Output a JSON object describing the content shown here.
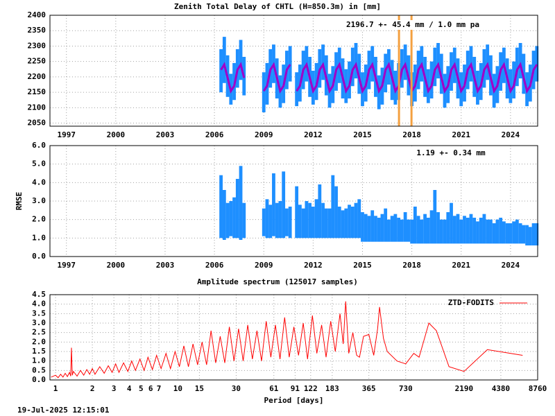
{
  "chart_data": [
    {
      "type": "range",
      "title": "Zenith Total Delay of CHTL (H=850.3m) in [mm]",
      "annotation": "2196.7 +-  45.4 mm /  1.0 mm pa",
      "xlim": [
        1996,
        2025.65
      ],
      "xticks": [
        1997,
        2000,
        2003,
        2006,
        2009,
        2012,
        2015,
        2018,
        2021,
        2024
      ],
      "ylim": [
        2040,
        2400
      ],
      "yticks": [
        2050,
        2100,
        2150,
        2200,
        2250,
        2300,
        2350,
        2400
      ],
      "grid": true,
      "vlines": [
        2017.22,
        2017.98
      ],
      "vline_color": "#f4a040",
      "x": [
        2006.4,
        2006.6,
        2006.8,
        2007,
        2007.2,
        2007.4,
        2007.6,
        2007.8,
        2008.4,
        2009,
        2009.2,
        2009.4,
        2009.6,
        2009.8,
        2010,
        2010.2,
        2010.4,
        2010.6,
        2010.8,
        2011,
        2011.2,
        2011.4,
        2011.6,
        2011.8,
        2012,
        2012.2,
        2012.4,
        2012.6,
        2012.8,
        2013,
        2013.2,
        2013.4,
        2013.6,
        2013.8,
        2014,
        2014.2,
        2014.4,
        2014.6,
        2014.8,
        2015,
        2015.2,
        2015.4,
        2015.6,
        2015.8,
        2016,
        2016.2,
        2016.4,
        2016.6,
        2016.8,
        2017,
        2017.2,
        2017.4,
        2017.6,
        2017.8,
        2018,
        2018.2,
        2018.4,
        2018.6,
        2018.8,
        2019,
        2019.2,
        2019.4,
        2019.6,
        2019.8,
        2020,
        2020.2,
        2020.4,
        2020.6,
        2020.8,
        2021,
        2021.2,
        2021.4,
        2021.6,
        2021.8,
        2022,
        2022.2,
        2022.4,
        2022.6,
        2022.8,
        2023,
        2023.2,
        2023.4,
        2023.6,
        2023.8,
        2024,
        2024.2,
        2024.4,
        2024.6,
        2024.8,
        2025,
        2025.2,
        2025.4,
        2025.6
      ],
      "series": [
        {
          "color": "#1e8fff",
          "low": [
            2150,
            2180,
            2135,
            2110,
            2125,
            2165,
            2190,
            2140,
            null,
            2085,
            2110,
            2165,
            2180,
            2130,
            2100,
            2115,
            2160,
            2185,
            null,
            2105,
            2120,
            2160,
            2185,
            2135,
            2110,
            2125,
            2165,
            2190,
            2140,
            2100,
            2115,
            2155,
            2180,
            2130,
            2115,
            2130,
            2170,
            2195,
            2145,
            2105,
            2120,
            2160,
            2185,
            2135,
            2095,
            2110,
            2150,
            2175,
            2125,
            2110,
            2125,
            2165,
            2190,
            2140,
            2105,
            2120,
            2160,
            2185,
            2135,
            2115,
            2130,
            2170,
            2195,
            2145,
            2100,
            2115,
            2155,
            2180,
            2130,
            2105,
            2120,
            2160,
            2185,
            2135,
            2110,
            2125,
            2165,
            2190,
            2140,
            2100,
            2115,
            2155,
            2180,
            2130,
            2115,
            2130,
            2170,
            2195,
            2145,
            2105,
            2120,
            2160,
            2185
          ],
          "high": [
            2290,
            2330,
            2270,
            2210,
            2245,
            2290,
            2320,
            2265,
            null,
            2215,
            2245,
            2290,
            2305,
            2260,
            2205,
            2240,
            2285,
            2300,
            null,
            2215,
            2240,
            2285,
            2300,
            2265,
            2220,
            2245,
            2290,
            2305,
            2270,
            2210,
            2235,
            2280,
            2295,
            2260,
            2225,
            2250,
            2295,
            2310,
            2275,
            2215,
            2240,
            2285,
            2300,
            2265,
            2205,
            2230,
            2275,
            2290,
            2255,
            2220,
            2245,
            2290,
            2305,
            2270,
            2215,
            2240,
            2285,
            2300,
            2265,
            2225,
            2250,
            2295,
            2310,
            2275,
            2210,
            2235,
            2280,
            2295,
            2260,
            2215,
            2240,
            2285,
            2300,
            2265,
            2220,
            2245,
            2290,
            2305,
            2270,
            2210,
            2235,
            2280,
            2295,
            2260,
            2225,
            2250,
            2295,
            2310,
            2275,
            2215,
            2240,
            2285,
            2300
          ]
        },
        {
          "color": "#a000c8",
          "values": [
            2223,
            2240,
            2197,
            2154,
            2171,
            2223,
            2240,
            2197,
            null,
            2154,
            2171,
            2223,
            2240,
            2197,
            2154,
            2171,
            2223,
            2240,
            null,
            2154,
            2171,
            2223,
            2240,
            2197,
            2154,
            2171,
            2223,
            2240,
            2197,
            2154,
            2171,
            2223,
            2240,
            2197,
            2154,
            2171,
            2223,
            2240,
            2197,
            2154,
            2171,
            2223,
            2240,
            2197,
            2154,
            2171,
            2223,
            2240,
            2197,
            2154,
            2171,
            2223,
            2240,
            2197,
            2154,
            2171,
            2223,
            2240,
            2197,
            2154,
            2171,
            2223,
            2240,
            2197,
            2154,
            2171,
            2223,
            2240,
            2197,
            2154,
            2171,
            2223,
            2240,
            2197,
            2154,
            2171,
            2223,
            2240,
            2197,
            2154,
            2171,
            2223,
            2240,
            2197,
            2154,
            2171,
            2223,
            2240,
            2197,
            2154,
            2171,
            2223,
            2240
          ]
        }
      ]
    },
    {
      "type": "range",
      "ylabel": "RMSE",
      "annotation": "1.19 +-  0.34 mm",
      "xlim": [
        1996,
        2025.65
      ],
      "xticks": [
        1997,
        2000,
        2003,
        2006,
        2009,
        2012,
        2015,
        2018,
        2021,
        2024
      ],
      "ylim": [
        0,
        6
      ],
      "yticks": [
        {
          "value": 0,
          "label": "0.0"
        },
        {
          "value": 1,
          "label": "1.0"
        },
        {
          "value": 2,
          "label": "2.0"
        },
        {
          "value": 3,
          "label": "3.0"
        },
        {
          "value": 4,
          "label": "4.0"
        },
        {
          "value": 5,
          "label": "5.0"
        },
        {
          "value": 6,
          "label": "6.0"
        }
      ],
      "grid": true,
      "x": [
        2006.4,
        2006.6,
        2006.8,
        2007,
        2007.2,
        2007.4,
        2007.6,
        2007.8,
        2008.4,
        2009,
        2009.2,
        2009.4,
        2009.6,
        2009.8,
        2010,
        2010.2,
        2010.4,
        2010.6,
        2010.8,
        2011,
        2011.2,
        2011.4,
        2011.6,
        2011.8,
        2012,
        2012.2,
        2012.4,
        2012.6,
        2012.8,
        2013,
        2013.2,
        2013.4,
        2013.6,
        2013.8,
        2014,
        2014.2,
        2014.4,
        2014.6,
        2014.8,
        2015,
        2015.2,
        2015.4,
        2015.6,
        2015.8,
        2016,
        2016.2,
        2016.4,
        2016.6,
        2016.8,
        2017,
        2017.2,
        2017.4,
        2017.6,
        2017.8,
        2018,
        2018.2,
        2018.4,
        2018.6,
        2018.8,
        2019,
        2019.2,
        2019.4,
        2019.6,
        2019.8,
        2020,
        2020.2,
        2020.4,
        2020.6,
        2020.8,
        2021,
        2021.2,
        2021.4,
        2021.6,
        2021.8,
        2022,
        2022.2,
        2022.4,
        2022.6,
        2022.8,
        2023,
        2023.2,
        2023.4,
        2023.6,
        2023.8,
        2024,
        2024.2,
        2024.4,
        2024.6,
        2024.8,
        2025,
        2025.2,
        2025.4,
        2025.6
      ],
      "series": [
        {
          "color": "#1e8fff",
          "low": [
            1.0,
            0.9,
            1.0,
            1.1,
            1.0,
            1.0,
            0.9,
            1.0,
            null,
            1.1,
            1.0,
            1.0,
            1.1,
            1.0,
            1.0,
            1.0,
            1.1,
            1.0,
            null,
            1.0,
            1.0,
            1.0,
            1.0,
            1.0,
            1.0,
            1.0,
            1.0,
            1.0,
            1.0,
            1.0,
            1.0,
            1.0,
            1.0,
            1.0,
            1.0,
            1.0,
            1.0,
            1.0,
            1.0,
            0.8,
            0.8,
            0.8,
            0.8,
            0.8,
            0.8,
            0.8,
            0.8,
            0.8,
            0.8,
            0.8,
            0.8,
            0.8,
            0.8,
            0.8,
            0.7,
            0.7,
            0.7,
            0.7,
            0.7,
            0.7,
            0.7,
            0.7,
            0.7,
            0.7,
            0.7,
            0.7,
            0.7,
            0.7,
            0.7,
            0.7,
            0.7,
            0.7,
            0.7,
            0.7,
            0.7,
            0.7,
            0.7,
            0.7,
            0.7,
            0.7,
            0.7,
            0.7,
            0.7,
            0.7,
            0.7,
            0.7,
            0.7,
            0.7,
            0.7,
            0.6,
            0.6,
            0.6,
            0.6
          ],
          "high": [
            4.4,
            3.6,
            2.9,
            3.0,
            3.2,
            4.2,
            4.9,
            2.9,
            null,
            2.6,
            3.1,
            2.8,
            4.5,
            2.9,
            3.0,
            4.6,
            2.6,
            2.7,
            null,
            3.8,
            2.8,
            2.6,
            3.0,
            2.9,
            2.7,
            3.1,
            3.9,
            2.9,
            2.6,
            2.6,
            4.4,
            3.8,
            2.7,
            2.5,
            2.6,
            2.8,
            2.7,
            2.9,
            3.1,
            2.4,
            2.3,
            2.2,
            2.5,
            2.2,
            2.1,
            2.3,
            2.6,
            2.0,
            2.2,
            2.3,
            2.1,
            2.0,
            2.4,
            2.0,
            2.0,
            2.7,
            2.2,
            2.0,
            2.3,
            2.1,
            2.5,
            3.6,
            2.4,
            2.0,
            2.0,
            2.4,
            2.9,
            2.2,
            2.3,
            2.0,
            2.2,
            2.1,
            2.3,
            2.1,
            1.9,
            2.1,
            2.3,
            2.0,
            2.0,
            1.8,
            2.0,
            2.1,
            1.9,
            1.8,
            1.8,
            1.9,
            2.0,
            1.8,
            1.7,
            1.7,
            1.6,
            1.8,
            1.8
          ]
        }
      ]
    },
    {
      "type": "line",
      "title": "Amplitude spectrum (125017 samples)",
      "xlabel": "Period [days]",
      "xlog": true,
      "xlim": [
        0.9,
        8760
      ],
      "xticks": [
        1,
        2,
        3,
        4,
        5,
        6,
        7,
        10,
        15,
        30,
        61,
        91,
        122,
        183,
        365,
        730,
        2190,
        4380,
        8760
      ],
      "ylim": [
        0,
        4.5
      ],
      "yticks": [
        {
          "value": 0,
          "label": "0.0"
        },
        0.5,
        {
          "value": 1,
          "label": "1.0"
        },
        1.5,
        {
          "value": 2,
          "label": "2.0"
        },
        2.5,
        {
          "value": 3,
          "label": "3.0"
        },
        3.5,
        {
          "value": 4,
          "label": "4.0"
        },
        4.5
      ],
      "grid": true,
      "legend": "top-right",
      "x": [
        0.92,
        1,
        1.05,
        1.1,
        1.15,
        1.2,
        1.25,
        1.3,
        1.33,
        1.35,
        1.37,
        1.4,
        1.5,
        1.6,
        1.7,
        1.8,
        1.9,
        2,
        2.1,
        2.3,
        2.5,
        2.7,
        2.9,
        3.1,
        3.3,
        3.6,
        3.9,
        4.2,
        4.5,
        4.9,
        5.3,
        5.7,
        6.2,
        6.7,
        7.3,
        8,
        8.7,
        9.5,
        10.3,
        11.2,
        12.2,
        13.3,
        14.5,
        15.8,
        17.2,
        18.7,
        20.4,
        22.2,
        24.2,
        26.4,
        28.8,
        31.4,
        34.2,
        37.3,
        40.7,
        44.4,
        48.4,
        52.8,
        57.6,
        62.8,
        68.5,
        74.7,
        81.5,
        88.9,
        97,
        106,
        115,
        126,
        137,
        150,
        163,
        178,
        194,
        212,
        225,
        236,
        250,
        270,
        290,
        306,
        330,
        365,
        400,
        430,
        446,
        480,
        516,
        620,
        730,
        850,
        940,
        1130,
        1300,
        1650,
        2190,
        3400,
        6600
      ],
      "series": [
        {
          "name": "ZTD-FODITS",
          "color": "#ff0000",
          "values": [
            0.15,
            0.25,
            0.12,
            0.3,
            0.15,
            0.35,
            0.18,
            0.4,
            0.2,
            1.7,
            0.25,
            0.45,
            0.2,
            0.5,
            0.25,
            0.55,
            0.3,
            0.6,
            0.3,
            0.7,
            0.35,
            0.75,
            0.4,
            0.85,
            0.4,
            0.9,
            0.45,
            1.0,
            0.5,
            1.1,
            0.5,
            1.2,
            0.55,
            1.3,
            0.6,
            1.4,
            0.6,
            1.5,
            0.7,
            1.8,
            0.7,
            1.9,
            0.8,
            2.0,
            0.8,
            2.6,
            0.9,
            2.3,
            0.9,
            2.8,
            1.0,
            2.7,
            1.0,
            2.9,
            1.1,
            2.6,
            1.0,
            3.1,
            1.2,
            2.9,
            1.1,
            3.3,
            1.2,
            2.8,
            1.3,
            3.0,
            1.1,
            3.4,
            1.4,
            2.9,
            1.2,
            3.1,
            1.5,
            3.5,
            1.9,
            4.15,
            1.4,
            2.5,
            1.3,
            1.2,
            2.3,
            2.4,
            1.3,
            2.7,
            3.85,
            2.2,
            1.5,
            1.0,
            0.85,
            1.4,
            1.2,
            3.0,
            2.6,
            0.7,
            0.45,
            1.6,
            1.3
          ]
        }
      ]
    }
  ],
  "footer": "19-Jul-2025 12:15:01"
}
